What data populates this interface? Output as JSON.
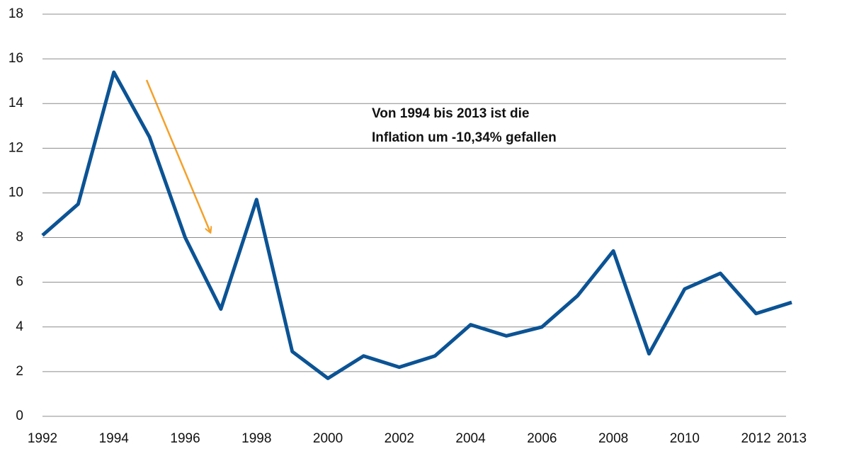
{
  "chart_data": {
    "type": "line",
    "x": [
      1992,
      1993,
      1994,
      1995,
      1996,
      1997,
      1998,
      1999,
      2000,
      2001,
      2002,
      2003,
      2004,
      2005,
      2006,
      2007,
      2008,
      2009,
      2010,
      2011,
      2012,
      2013
    ],
    "series": [
      {
        "color": "#0b5394",
        "values": [
          8.1,
          9.5,
          15.4,
          12.5,
          8.0,
          4.8,
          9.7,
          2.9,
          1.7,
          2.7,
          2.2,
          2.7,
          4.1,
          3.6,
          4.0,
          5.4,
          7.4,
          2.8,
          5.7,
          6.4,
          4.6,
          5.1
        ]
      }
    ],
    "xlim": [
      1992,
      2013
    ],
    "xticks": [
      1992,
      1994,
      1996,
      1998,
      2000,
      2002,
      2004,
      2006,
      2008,
      2010,
      2012,
      2013
    ],
    "ylim": [
      0,
      18
    ],
    "yticks": [
      0,
      2,
      4,
      6,
      8,
      10,
      12,
      14,
      16,
      18
    ],
    "grid": true,
    "annotation": [
      "Von 1994 bis 2013 ist die",
      "Inflation um -10,34% gefallen"
    ]
  }
}
